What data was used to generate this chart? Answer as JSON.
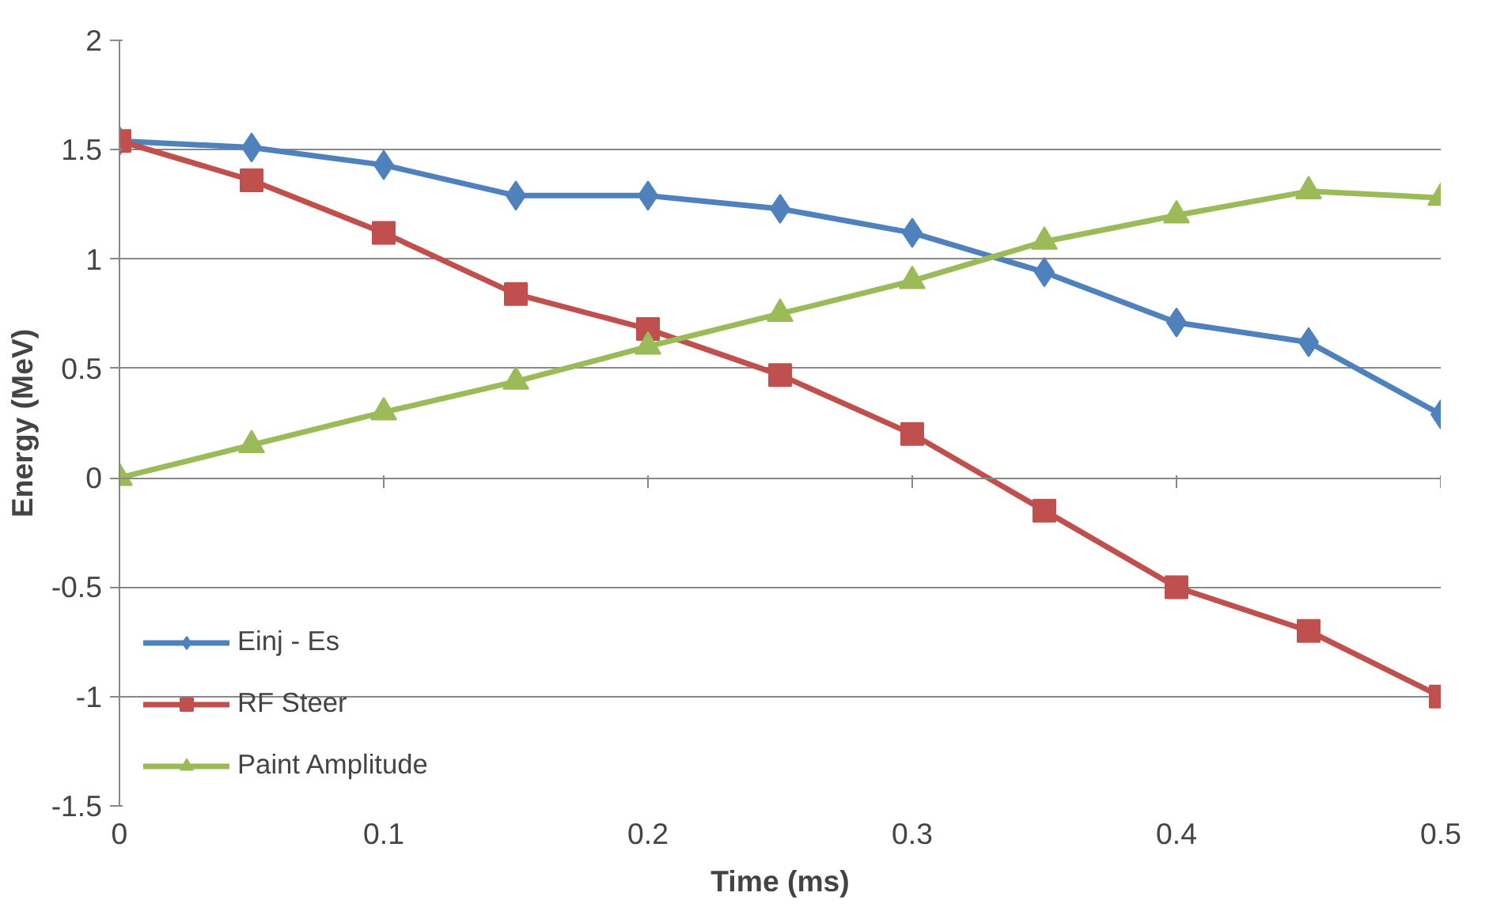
{
  "chart_data": {
    "type": "line",
    "xlabel": "Time (ms)",
    "ylabel": "Energy (MeV)",
    "x": [
      0,
      0.05,
      0.1,
      0.15,
      0.2,
      0.25,
      0.3,
      0.35,
      0.4,
      0.45,
      0.5
    ],
    "series": [
      {
        "name": "Einj - Es",
        "color": "#4f81bd",
        "marker": "diamond",
        "values": [
          1.54,
          1.51,
          1.43,
          1.29,
          1.29,
          1.23,
          1.12,
          0.94,
          0.71,
          0.62,
          0.29
        ]
      },
      {
        "name": "RF Steer",
        "color": "#c0504d",
        "marker": "square",
        "values": [
          1.54,
          1.36,
          1.12,
          0.84,
          0.68,
          0.47,
          0.2,
          -0.15,
          -0.5,
          -0.7,
          -1.0
        ]
      },
      {
        "name": "Paint Amplitude",
        "color": "#9bbb59",
        "marker": "triangle",
        "values": [
          0,
          0.15,
          0.3,
          0.44,
          0.6,
          0.75,
          0.9,
          1.08,
          1.2,
          1.31,
          1.28
        ]
      }
    ],
    "xlim": [
      0,
      0.5
    ],
    "xticks": [
      0,
      0.1,
      0.2,
      0.3,
      0.4,
      0.5
    ],
    "ylim": [
      -1.5,
      2
    ],
    "yticks": [
      -1.5,
      -1,
      -0.5,
      0,
      0.5,
      1,
      1.5,
      2
    ],
    "grid": "y",
    "legend": "bottom left",
    "line_style": "solid"
  }
}
